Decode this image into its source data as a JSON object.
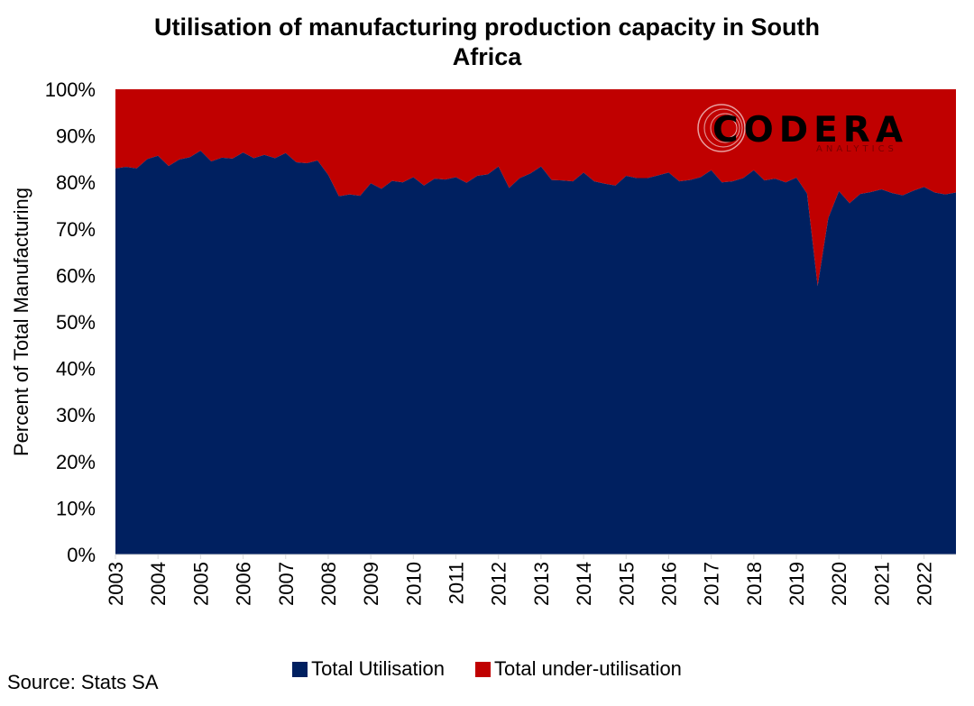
{
  "title": "Utilisation of manufacturing production capacity in South Africa",
  "source": "Source: Stats SA",
  "logo": {
    "text": "CODERA",
    "subtext": "ANALYTICS"
  },
  "colors": {
    "utilisation": "#002060",
    "under_utilisation": "#C00000"
  },
  "chart_data": {
    "type": "area",
    "stacked": true,
    "ylabel": "Percent of Total Manufacturing",
    "ylim": [
      0,
      100
    ],
    "y_ticks": [
      "0%",
      "10%",
      "20%",
      "30%",
      "40%",
      "50%",
      "60%",
      "70%",
      "80%",
      "90%",
      "100%"
    ],
    "x_tick_labels": [
      "2003",
      "2004",
      "2005",
      "2006",
      "2007",
      "2008",
      "2009",
      "2010",
      "2011",
      "2012",
      "2013",
      "2014",
      "2015",
      "2016",
      "2017",
      "2018",
      "2019",
      "2020",
      "2021",
      "2022"
    ],
    "x": [
      "2003Q1",
      "2003Q2",
      "2003Q3",
      "2003Q4",
      "2004Q1",
      "2004Q2",
      "2004Q3",
      "2004Q4",
      "2005Q1",
      "2005Q2",
      "2005Q3",
      "2005Q4",
      "2006Q1",
      "2006Q2",
      "2006Q3",
      "2006Q4",
      "2007Q1",
      "2007Q2",
      "2007Q3",
      "2007Q4",
      "2008Q1",
      "2008Q2",
      "2008Q3",
      "2008Q4",
      "2009Q1",
      "2009Q2",
      "2009Q3",
      "2009Q4",
      "2010Q1",
      "2010Q2",
      "2010Q3",
      "2010Q4",
      "2011Q1",
      "2011Q2",
      "2011Q3",
      "2011Q4",
      "2012Q1",
      "2012Q2",
      "2012Q3",
      "2012Q4",
      "2013Q1",
      "2013Q2",
      "2013Q3",
      "2013Q4",
      "2014Q1",
      "2014Q2",
      "2014Q3",
      "2014Q4",
      "2015Q1",
      "2015Q2",
      "2015Q3",
      "2015Q4",
      "2016Q1",
      "2016Q2",
      "2016Q3",
      "2016Q4",
      "2017Q1",
      "2017Q2",
      "2017Q3",
      "2017Q4",
      "2018Q1",
      "2018Q2",
      "2018Q3",
      "2018Q4",
      "2019Q1",
      "2019Q2",
      "2019Q3",
      "2019Q4",
      "2020Q1",
      "2020Q2",
      "2020Q3",
      "2020Q4",
      "2021Q1",
      "2021Q2",
      "2021Q3",
      "2021Q4",
      "2022Q1",
      "2022Q2",
      "2022Q3",
      "2022Q4"
    ],
    "series": [
      {
        "name": "Total Utilisation",
        "values": [
          83.0,
          83.3,
          83.0,
          85.0,
          85.7,
          83.5,
          84.9,
          85.4,
          86.8,
          84.5,
          85.3,
          85.1,
          86.4,
          85.2,
          85.9,
          85.2,
          86.3,
          84.3,
          84.1,
          84.7,
          81.6,
          77.0,
          77.4,
          77.1,
          79.8,
          78.6,
          80.3,
          80.0,
          81.1,
          79.3,
          80.8,
          80.6,
          81.1,
          79.9,
          81.4,
          81.7,
          83.4,
          78.8,
          80.9,
          81.9,
          83.4,
          80.5,
          80.4,
          80.2,
          82.1,
          80.2,
          79.7,
          79.3,
          81.4,
          80.9,
          80.9,
          81.5,
          82.1,
          80.2,
          80.5,
          81.1,
          82.6,
          80.0,
          80.2,
          80.9,
          82.6,
          80.4,
          80.8,
          80.0,
          81.0,
          77.6,
          57.7,
          72.3,
          78.1,
          75.5,
          77.5,
          77.9,
          78.5,
          77.7,
          77.2,
          78.2,
          79.0,
          77.8,
          77.4,
          77.8
        ]
      },
      {
        "name": "Total under-utilisation",
        "values": [
          17.0,
          16.7,
          17.0,
          15.0,
          14.3,
          16.5,
          15.1,
          14.6,
          13.2,
          15.5,
          14.7,
          14.9,
          13.6,
          14.8,
          14.1,
          14.8,
          13.7,
          15.7,
          15.9,
          15.3,
          18.4,
          23.0,
          22.6,
          22.9,
          20.2,
          21.4,
          19.7,
          20.0,
          18.9,
          20.7,
          19.2,
          19.4,
          18.9,
          20.1,
          18.6,
          18.3,
          16.6,
          21.2,
          19.1,
          18.1,
          16.6,
          19.5,
          19.6,
          19.8,
          17.9,
          19.8,
          20.3,
          20.7,
          18.6,
          19.1,
          19.1,
          18.5,
          17.9,
          19.8,
          19.5,
          18.9,
          17.4,
          20.0,
          19.8,
          19.1,
          17.4,
          19.6,
          19.2,
          20.0,
          19.0,
          22.4,
          42.3,
          27.7,
          21.9,
          24.5,
          22.5,
          22.1,
          21.5,
          22.3,
          22.8,
          21.8,
          21.0,
          22.2,
          22.6,
          22.2
        ]
      }
    ],
    "legend_position": "bottom",
    "grid": false
  }
}
